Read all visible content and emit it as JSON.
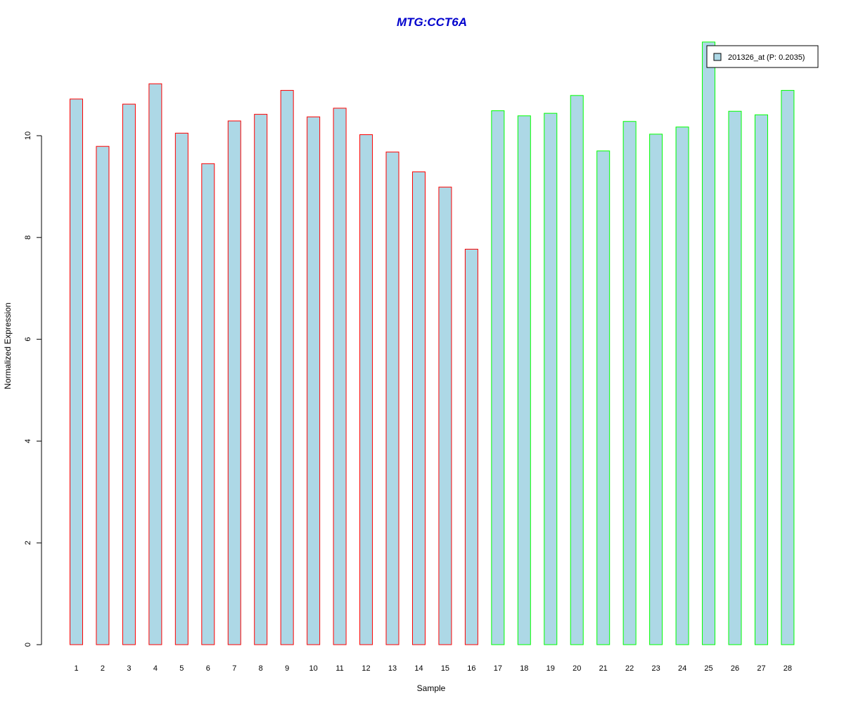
{
  "chart_data": {
    "type": "bar",
    "title": "MTG:CCT6A",
    "xlabel": "Sample",
    "ylabel": "Normalized Expression",
    "ylim": [
      0,
      12
    ],
    "y_ticks": [
      0,
      2,
      4,
      6,
      8,
      10
    ],
    "categories": [
      "1",
      "2",
      "3",
      "4",
      "5",
      "6",
      "7",
      "8",
      "9",
      "10",
      "11",
      "12",
      "13",
      "14",
      "15",
      "16",
      "17",
      "18",
      "19",
      "20",
      "21",
      "22",
      "23",
      "24",
      "25",
      "26",
      "27",
      "28"
    ],
    "values": [
      10.72,
      9.79,
      10.62,
      11.02,
      10.05,
      9.45,
      10.29,
      10.42,
      10.89,
      10.37,
      10.54,
      10.02,
      9.68,
      9.29,
      8.99,
      7.77,
      10.49,
      10.39,
      10.44,
      10.79,
      9.7,
      10.28,
      10.03,
      10.17,
      11.84,
      10.48,
      10.41,
      10.89
    ],
    "bar_fill": "#add8e6",
    "border_colors": [
      "#ff0000",
      "#ff0000",
      "#ff0000",
      "#ff0000",
      "#ff0000",
      "#ff0000",
      "#ff0000",
      "#ff0000",
      "#ff0000",
      "#ff0000",
      "#ff0000",
      "#ff0000",
      "#ff0000",
      "#ff0000",
      "#ff0000",
      "#ff0000",
      "#00ff00",
      "#00ff00",
      "#00ff00",
      "#00ff00",
      "#00ff00",
      "#00ff00",
      "#00ff00",
      "#00ff00",
      "#00ff00",
      "#00ff00",
      "#00ff00",
      "#00ff00"
    ],
    "title_color": "#0000cd",
    "grid": false,
    "legend": {
      "placement": "top-right",
      "entries": [
        {
          "label": "201326_at (P: 0.2035)",
          "color": "#add8e6"
        }
      ]
    }
  }
}
